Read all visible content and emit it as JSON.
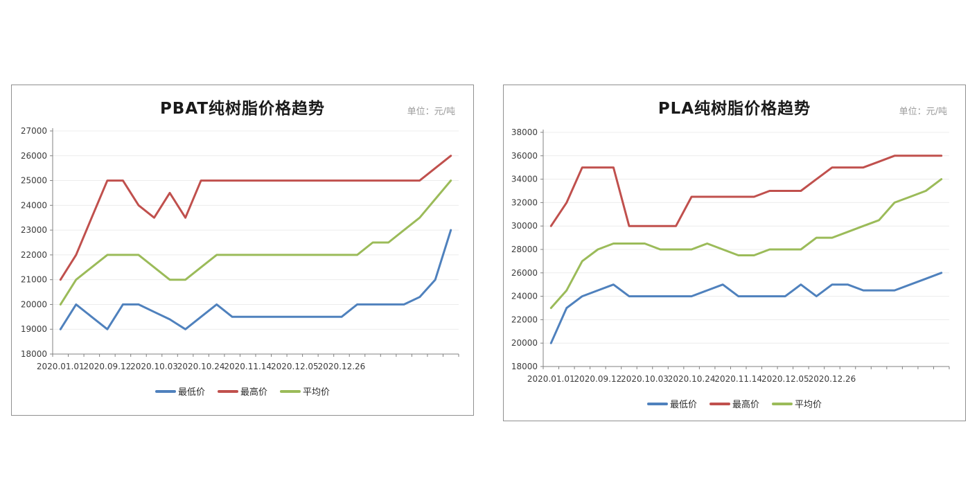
{
  "page": {
    "background": "#ffffff"
  },
  "colors": {
    "min_price": "#4F81BD",
    "max_price": "#C0504D",
    "avg_price": "#9BBB59",
    "axis": "#808080",
    "gridline": "#ececec",
    "unit_text": "#9b9b9b",
    "panel_border": "#8f8f8f"
  },
  "chart_data": [
    {
      "type": "line",
      "title": "PBAT纯树脂价格趋势",
      "unit_label": "单位：元/吨",
      "legend_position": "bottom",
      "grid": true,
      "ylim": [
        18000,
        27000
      ],
      "y_axis": {
        "min": 18000,
        "max": 27000,
        "step": 1000,
        "labels": [
          "18000",
          "19000",
          "20000",
          "21000",
          "22000",
          "23000",
          "24000",
          "25000",
          "26000",
          "27000"
        ]
      },
      "x_labels": [
        "2020.01.01",
        "2020.09.12",
        "2020.10.03",
        "2020.10.24",
        "2020.11.14",
        "2020.12.05",
        "2020.12.26"
      ],
      "label_indices": [
        0,
        3,
        6,
        9,
        12,
        15,
        18
      ],
      "n_points": 26,
      "series": [
        {
          "name": "最低价",
          "color": "#4F81BD",
          "values": [
            19000,
            20000,
            19500,
            19000,
            20000,
            20000,
            19700,
            19400,
            19000,
            19500,
            20000,
            19500,
            19500,
            19500,
            19500,
            19500,
            19500,
            19500,
            19500,
            20000,
            20000,
            20000,
            20000,
            20300,
            21000,
            23000
          ]
        },
        {
          "name": "最高价",
          "color": "#C0504D",
          "values": [
            21000,
            22000,
            23500,
            25000,
            25000,
            24000,
            23500,
            24500,
            23500,
            25000,
            25000,
            25000,
            25000,
            25000,
            25000,
            25000,
            25000,
            25000,
            25000,
            25000,
            25000,
            25000,
            25000,
            25000,
            25500,
            26000
          ]
        },
        {
          "name": "平均价",
          "color": "#9BBB59",
          "values": [
            20000,
            21000,
            21500,
            22000,
            22000,
            22000,
            21500,
            21000,
            21000,
            21500,
            22000,
            22000,
            22000,
            22000,
            22000,
            22000,
            22000,
            22000,
            22000,
            22000,
            22500,
            22500,
            23000,
            23500,
            24250,
            25000
          ]
        }
      ]
    },
    {
      "type": "line",
      "title": "PLA纯树脂价格趋势",
      "unit_label": "单位：元/吨",
      "legend_position": "bottom",
      "grid": true,
      "ylim": [
        18000,
        38000
      ],
      "y_axis": {
        "min": 18000,
        "max": 38000,
        "step": 2000,
        "labels": [
          "18000",
          "20000",
          "22000",
          "24000",
          "26000",
          "28000",
          "30000",
          "32000",
          "34000",
          "36000",
          "38000"
        ]
      },
      "x_labels": [
        "2020.01.01",
        "2020.09.12",
        "2020.10.03",
        "2020.10.24",
        "2020.11.14",
        "2020.12.05",
        "2020.12.26"
      ],
      "label_indices": [
        0,
        3,
        6,
        9,
        12,
        15,
        18
      ],
      "n_points": 26,
      "series": [
        {
          "name": "最低价",
          "color": "#4F81BD",
          "values": [
            20000,
            23000,
            24000,
            24500,
            25000,
            24000,
            24000,
            24000,
            24000,
            24000,
            24500,
            25000,
            24000,
            24000,
            24000,
            24000,
            25000,
            24000,
            25000,
            25000,
            24500,
            24500,
            24500,
            25000,
            25500,
            26000
          ]
        },
        {
          "name": "最高价",
          "color": "#C0504D",
          "values": [
            30000,
            32000,
            35000,
            35000,
            35000,
            30000,
            30000,
            30000,
            30000,
            32500,
            32500,
            32500,
            32500,
            32500,
            33000,
            33000,
            33000,
            34000,
            35000,
            35000,
            35000,
            35500,
            36000,
            36000,
            36000,
            36000
          ]
        },
        {
          "name": "平均价",
          "color": "#9BBB59",
          "values": [
            23000,
            24500,
            27000,
            28000,
            28500,
            28500,
            28500,
            28000,
            28000,
            28000,
            28500,
            28000,
            27500,
            27500,
            28000,
            28000,
            28000,
            29000,
            29000,
            29500,
            30000,
            30500,
            32000,
            32500,
            33000,
            34000
          ]
        }
      ]
    }
  ]
}
